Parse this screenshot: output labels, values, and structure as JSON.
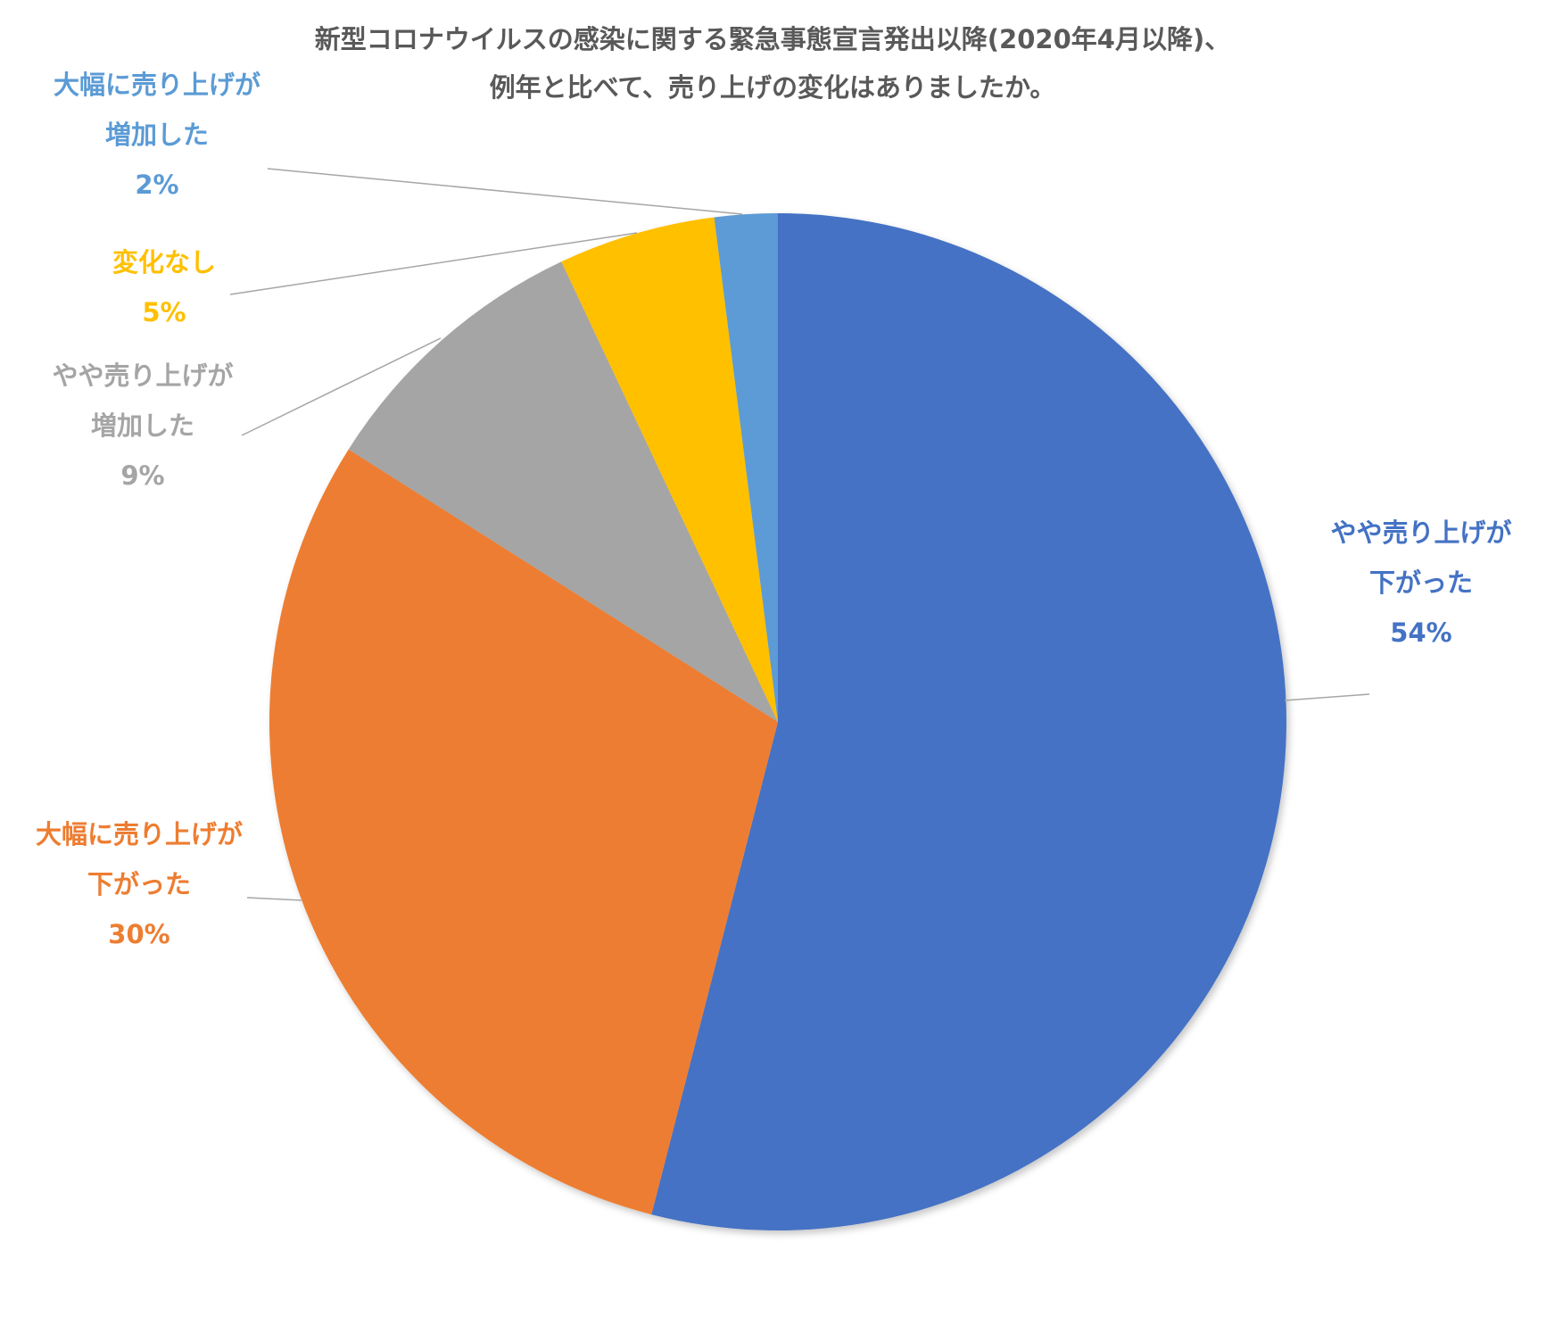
{
  "chart_data": {
    "type": "pie",
    "title_lines": [
      "新型コロナウイルスの感染に関する緊急事態宣言発出以降(2020年4月以降)、",
      "例年と比べて、売り上げの変化はありましたか。"
    ],
    "slices": [
      {
        "label_lines": [
          "やや売り上げが",
          "下がった"
        ],
        "value": 54,
        "value_label": "54%",
        "color": "#4472c4"
      },
      {
        "label_lines": [
          "大幅に売り上げが",
          "下がった"
        ],
        "value": 30,
        "value_label": "30%",
        "color": "#ed7d31"
      },
      {
        "label_lines": [
          "やや売り上げが",
          "増加した"
        ],
        "value": 9,
        "value_label": "9%",
        "color": "#a5a5a5"
      },
      {
        "label_lines": [
          "変化なし"
        ],
        "value": 5,
        "value_label": "5%",
        "color": "#ffc000"
      },
      {
        "label_lines": [
          "大幅に売り上げが",
          "増加した"
        ],
        "value": 2,
        "value_label": "2%",
        "color": "#5b9bd5"
      }
    ],
    "start_angle": "12 o'clock",
    "direction": "clockwise",
    "legend": "none"
  }
}
